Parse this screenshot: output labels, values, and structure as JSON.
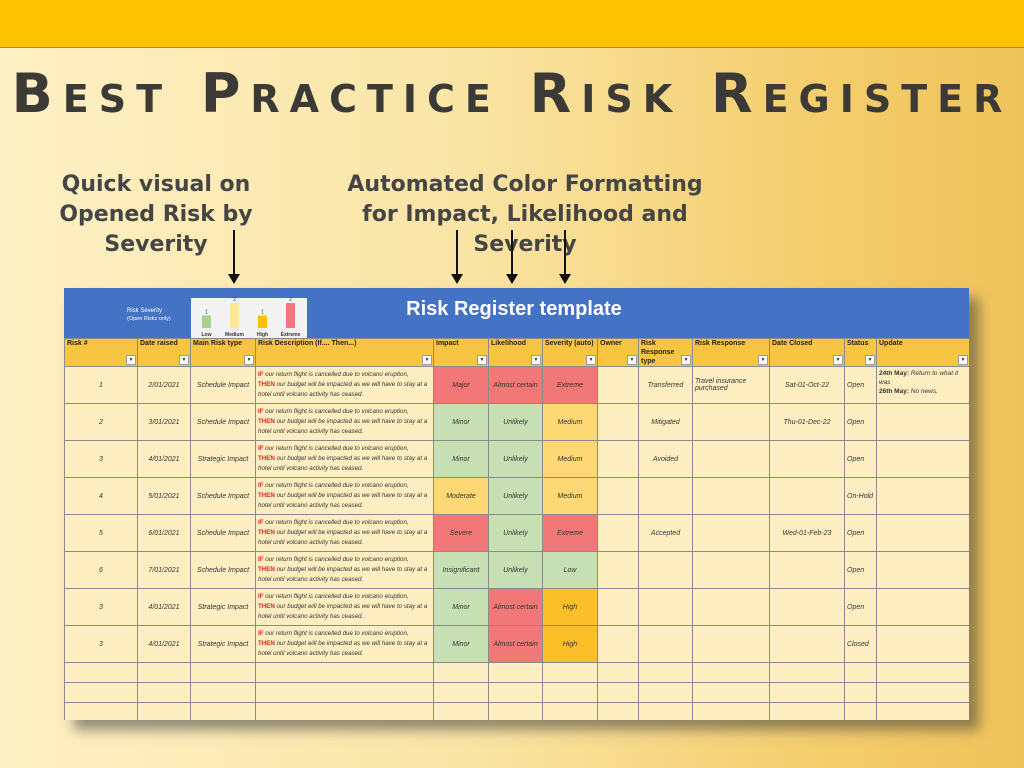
{
  "page": {
    "title": "Best Practice Risk Register",
    "callout_left": "Quick visual on Opened Risk by Severity",
    "callout_right": "Automated Color Formatting for Impact, Likelihood and Severity"
  },
  "sheet": {
    "title": "Risk Register template",
    "chart_data": {
      "type": "bar",
      "title": "Risk Severity",
      "subtitle": "(Open Risks only)",
      "categories": [
        "Low",
        "Medium",
        "High",
        "Extreme"
      ],
      "values": [
        1,
        2,
        1,
        2
      ],
      "colors": [
        "#a9d18e",
        "#ffe699",
        "#ffc000",
        "#f4777f"
      ]
    },
    "columns": [
      "Risk #",
      "Date raised",
      "Main Risk type",
      "Risk Description (If.... Then...)",
      "Impact",
      "Likelihood",
      "Severity  (auto)",
      "Owner",
      "Risk Response type",
      "Risk Response",
      "Date Closed",
      "Status",
      "Update"
    ],
    "desc_parts": {
      "if_kw": "IF",
      "if_text": " our return flight is cancelled due to volcano eruption,",
      "then_kw": "THEN",
      "then_text": " our budget will be impacted as we will have to stay at a hotel until volcano activity has ceased."
    },
    "rows": [
      {
        "id": "1",
        "date": "2/01/2021",
        "type": "Schedule Impact",
        "impact": "Major",
        "likelihood": "Almost certain",
        "severity": "Extreme",
        "owner": "",
        "resp_type": "Transferred",
        "resp": "Travel insurance purchased",
        "closed": "Sat-01-Oct-22",
        "status": "Open",
        "update1_b": "24th May:",
        "update1": " Return to what it was",
        "update2_b": "26th May:",
        "update2": " No news."
      },
      {
        "id": "2",
        "date": "3/01/2021",
        "type": "Schedule Impact",
        "impact": "Minor",
        "likelihood": "Unlikely",
        "severity": "Medium",
        "owner": "",
        "resp_type": "Mitigated",
        "resp": "",
        "closed": "Thu-01-Dec-22",
        "status": "Open",
        "update1_b": "",
        "update1": "",
        "update2_b": "",
        "update2": ""
      },
      {
        "id": "3",
        "date": "4/01/2021",
        "type": "Strategic Impact",
        "impact": "Minor",
        "likelihood": "Unlikely",
        "severity": "Medium",
        "owner": "",
        "resp_type": "Avoided",
        "resp": "",
        "closed": "",
        "status": "Open",
        "update1_b": "",
        "update1": "",
        "update2_b": "",
        "update2": ""
      },
      {
        "id": "4",
        "date": "5/01/2021",
        "type": "Schedule Impact",
        "impact": "Moderate",
        "likelihood": "Unlikely",
        "severity": "Medium",
        "owner": "",
        "resp_type": "",
        "resp": "",
        "closed": "",
        "status": "On-Hold",
        "update1_b": "",
        "update1": "",
        "update2_b": "",
        "update2": ""
      },
      {
        "id": "5",
        "date": "6/01/2021",
        "type": "Schedule Impact",
        "impact": "Severe",
        "likelihood": "Unlikely",
        "severity": "Extreme",
        "owner": "",
        "resp_type": "Accepted",
        "resp": "",
        "closed": "Wed-01-Feb-23",
        "status": "Open",
        "update1_b": "",
        "update1": "",
        "update2_b": "",
        "update2": ""
      },
      {
        "id": "6",
        "date": "7/01/2021",
        "type": "Schedule Impact",
        "impact": "Insignificant",
        "likelihood": "Unlikely",
        "severity": "Low",
        "owner": "",
        "resp_type": "",
        "resp": "",
        "closed": "",
        "status": "Open",
        "update1_b": "",
        "update1": "",
        "update2_b": "",
        "update2": ""
      },
      {
        "id": "3",
        "date": "4/01/2021",
        "type": "Strategic Impact",
        "impact": "Minor",
        "likelihood": "Almost certain",
        "severity": "High",
        "owner": "",
        "resp_type": "",
        "resp": "",
        "closed": "",
        "status": "Open",
        "update1_b": "",
        "update1": "",
        "update2_b": "",
        "update2": ""
      },
      {
        "id": "3",
        "date": "4/01/2021",
        "type": "Strategic Impact",
        "impact": "Minor",
        "likelihood": "Almost certain",
        "severity": "High",
        "owner": "",
        "resp_type": "",
        "resp": "",
        "closed": "",
        "status": "Closed",
        "update1_b": "",
        "update1": "",
        "update2_b": "",
        "update2": ""
      }
    ],
    "cell_colors": {
      "Major": "c-red",
      "Severe": "c-red",
      "Minor": "c-green",
      "Insignificant": "c-green",
      "Moderate": "c-amber",
      "Almost certain": "c-red",
      "Unlikely": "c-green",
      "Extreme": "c-red",
      "Medium": "c-amber",
      "Low": "c-green",
      "High": "c-orange"
    }
  }
}
